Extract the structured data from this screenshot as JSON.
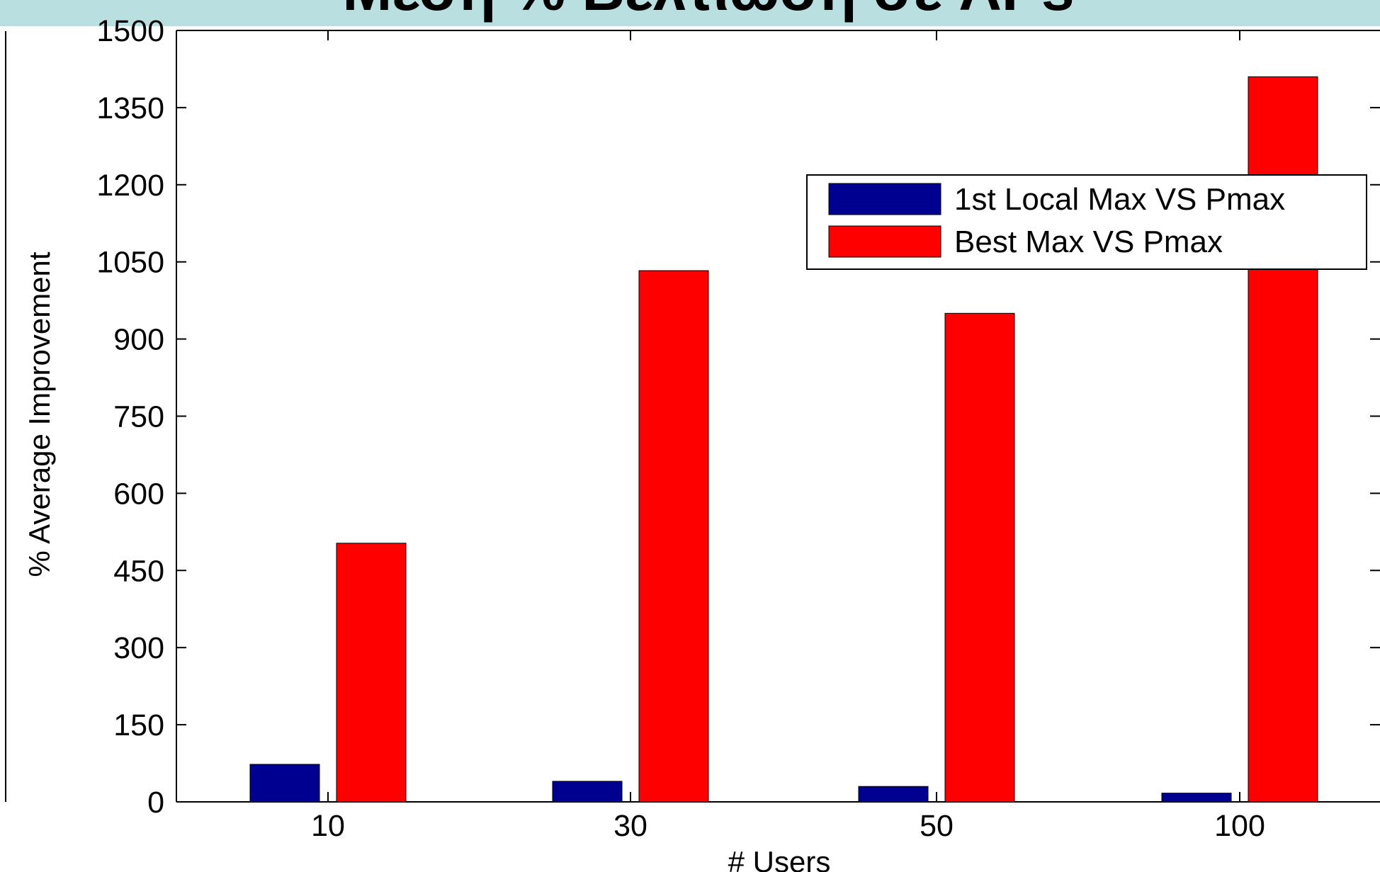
{
  "slide": {
    "title_fragment": "Μέση % Βελτίωση σε APs",
    "banner_color": "#b9dfe1"
  },
  "chart_data": {
    "type": "bar",
    "title": "",
    "xlabel": "# Users",
    "ylabel": "% Average Improvement",
    "categories": [
      "10",
      "30",
      "50",
      "100"
    ],
    "ylim": [
      0,
      1500
    ],
    "yticks": [
      0,
      150,
      300,
      450,
      600,
      750,
      900,
      1050,
      1200,
      1350,
      1500
    ],
    "grid": false,
    "legend_position": "top-right",
    "series": [
      {
        "name": "1st Local Max VS Pmax",
        "color": "#000090",
        "values": [
          73,
          40,
          30,
          17
        ]
      },
      {
        "name": "Best Max VS Pmax",
        "color": "#ff0000",
        "values": [
          503,
          1033,
          950,
          1410
        ]
      }
    ]
  }
}
